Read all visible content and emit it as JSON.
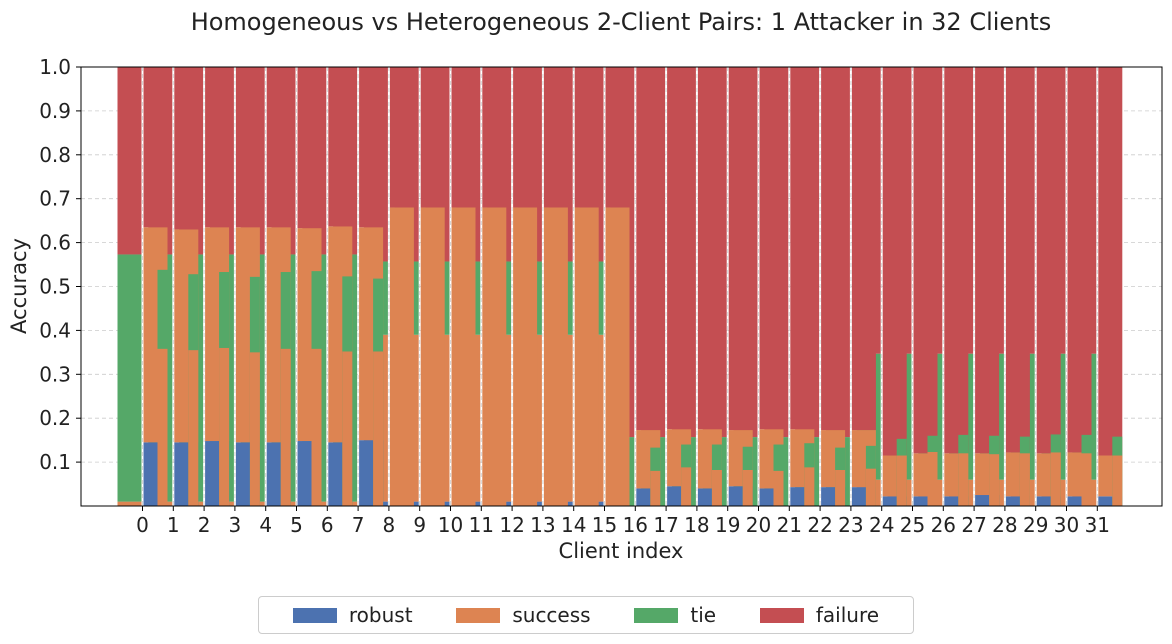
{
  "colors": {
    "robust": "#4c72b0",
    "success": "#dd8452",
    "tie": "#55a868",
    "failure": "#c44e52",
    "grid": "#cccccc",
    "axis": "#000000"
  },
  "chart_data": {
    "type": "bar",
    "stacked": true,
    "title": "Homogeneous vs Heterogeneous 2-Client Pairs: 1 Attacker in 32 Clients",
    "xlabel": "Client index",
    "ylabel": "Accuracy",
    "ylim": [
      0,
      1.0
    ],
    "yticks": [
      "0.1",
      "0.2",
      "0.3",
      "0.4",
      "0.5",
      "0.6",
      "0.7",
      "0.8",
      "0.9",
      "1.0"
    ],
    "grid": true,
    "legend_position": "bottom-center",
    "categories": [
      "0",
      "1",
      "2",
      "3",
      "4",
      "5",
      "6",
      "7",
      "8",
      "9",
      "10",
      "11",
      "12",
      "13",
      "14",
      "15",
      "16",
      "17",
      "18",
      "19",
      "20",
      "21",
      "22",
      "23",
      "24",
      "25",
      "26",
      "27",
      "28",
      "29",
      "30",
      "31"
    ],
    "series_order": [
      "robust",
      "success",
      "tie",
      "failure"
    ],
    "legend": [
      {
        "key": "robust",
        "label": "robust"
      },
      {
        "key": "success",
        "label": "success"
      },
      {
        "key": "tie",
        "label": "tie"
      },
      {
        "key": "failure",
        "label": "failure"
      }
    ],
    "homogeneous": {
      "robust": [
        0.0,
        0.0,
        0.0,
        0.0,
        0.0,
        0.0,
        0.0,
        0.0,
        0.01,
        0.01,
        0.01,
        0.01,
        0.01,
        0.01,
        0.01,
        0.01,
        0.0,
        0.0,
        0.0,
        0.0,
        0.0,
        0.0,
        0.0,
        0.0,
        0.0,
        0.0,
        0.0,
        0.0,
        0.0,
        0.0,
        0.0,
        0.0
      ],
      "success": [
        0.01,
        0.01,
        0.01,
        0.01,
        0.01,
        0.01,
        0.01,
        0.01,
        0.38,
        0.38,
        0.38,
        0.38,
        0.38,
        0.38,
        0.38,
        0.38,
        0.0,
        0.0,
        0.0,
        0.0,
        0.0,
        0.0,
        0.0,
        0.0,
        0.06,
        0.06,
        0.06,
        0.06,
        0.06,
        0.06,
        0.06,
        0.06
      ],
      "tie": [
        0.563,
        0.563,
        0.563,
        0.563,
        0.563,
        0.563,
        0.563,
        0.563,
        0.167,
        0.167,
        0.167,
        0.167,
        0.167,
        0.167,
        0.167,
        0.167,
        0.157,
        0.157,
        0.157,
        0.157,
        0.157,
        0.157,
        0.157,
        0.157,
        0.287,
        0.287,
        0.287,
        0.287,
        0.287,
        0.287,
        0.287,
        0.287
      ],
      "failure": [
        0.427,
        0.427,
        0.427,
        0.427,
        0.427,
        0.427,
        0.427,
        0.427,
        0.443,
        0.443,
        0.443,
        0.443,
        0.443,
        0.443,
        0.443,
        0.443,
        0.843,
        0.843,
        0.843,
        0.843,
        0.843,
        0.843,
        0.843,
        0.843,
        0.653,
        0.653,
        0.653,
        0.653,
        0.653,
        0.653,
        0.653,
        0.653
      ]
    },
    "heterogeneous": {
      "robust": [
        0.145,
        0.145,
        0.148,
        0.145,
        0.145,
        0.148,
        0.145,
        0.15,
        0.0,
        0.0,
        0.0,
        0.0,
        0.0,
        0.0,
        0.0,
        0.0,
        0.04,
        0.045,
        0.04,
        0.045,
        0.04,
        0.043,
        0.043,
        0.043,
        0.022,
        0.022,
        0.022,
        0.025,
        0.022,
        0.022,
        0.022,
        0.022
      ],
      "success": [
        0.49,
        0.485,
        0.487,
        0.49,
        0.49,
        0.485,
        0.492,
        0.485,
        0.68,
        0.68,
        0.68,
        0.68,
        0.68,
        0.68,
        0.68,
        0.68,
        0.133,
        0.13,
        0.135,
        0.128,
        0.135,
        0.132,
        0.13,
        0.13,
        0.093,
        0.098,
        0.098,
        0.095,
        0.1,
        0.098,
        0.1,
        0.093
      ],
      "tie": [
        0.0,
        0.0,
        0.0,
        0.0,
        0.0,
        0.0,
        0.0,
        0.0,
        0.0,
        0.0,
        0.0,
        0.0,
        0.0,
        0.0,
        0.0,
        0.0,
        0.0,
        0.0,
        0.0,
        0.0,
        0.0,
        0.0,
        0.0,
        0.0,
        0.0,
        0.0,
        0.0,
        0.0,
        0.0,
        0.0,
        0.0,
        0.0
      ],
      "failure": [
        0.365,
        0.37,
        0.365,
        0.365,
        0.365,
        0.367,
        0.363,
        0.365,
        0.32,
        0.32,
        0.32,
        0.32,
        0.32,
        0.32,
        0.32,
        0.32,
        0.827,
        0.825,
        0.825,
        0.827,
        0.825,
        0.825,
        0.827,
        0.827,
        0.885,
        0.88,
        0.88,
        0.88,
        0.878,
        0.88,
        0.878,
        0.885
      ]
    },
    "heterogeneous_overlay": {
      "success": [
        0.358,
        0.355,
        0.36,
        0.35,
        0.358,
        0.358,
        0.352,
        0.352,
        0.0,
        0.0,
        0.0,
        0.0,
        0.0,
        0.0,
        0.0,
        0.0,
        0.08,
        0.088,
        0.082,
        0.082,
        0.08,
        0.088,
        0.082,
        0.085,
        0.115,
        0.123,
        0.12,
        0.118,
        0.12,
        0.122,
        0.12,
        0.115
      ],
      "tie": [
        0.538,
        0.528,
        0.533,
        0.522,
        0.533,
        0.535,
        0.523,
        0.518,
        0.0,
        0.0,
        0.0,
        0.0,
        0.0,
        0.0,
        0.0,
        0.0,
        0.133,
        0.14,
        0.14,
        0.135,
        0.14,
        0.143,
        0.133,
        0.137,
        0.153,
        0.16,
        0.162,
        0.16,
        0.158,
        0.163,
        0.162,
        0.158
      ]
    }
  }
}
